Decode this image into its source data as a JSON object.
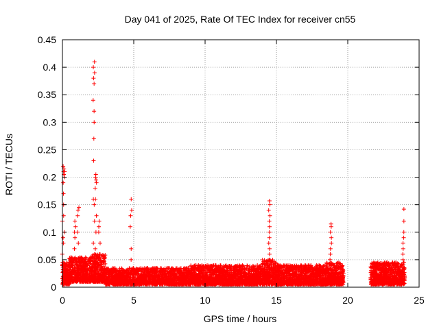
{
  "chart_data": {
    "type": "scatter",
    "title": "Day 041 of 2025, Rate Of TEC Index for receiver cn55",
    "xlabel": "GPS time / hours",
    "ylabel": "ROTI / TECUs",
    "xlim": [
      0,
      25
    ],
    "ylim": [
      0,
      0.45
    ],
    "xticks": [
      0,
      5,
      10,
      15,
      20,
      25
    ],
    "yticks": [
      0,
      0.05,
      0.1,
      0.15,
      0.2,
      0.25,
      0.3,
      0.35,
      0.4,
      0.45
    ],
    "grid": true,
    "marker": "+",
    "series_color": "#ff0000",
    "data_gap": [
      19.7,
      21.6
    ],
    "series": [
      {
        "name": "ROTI",
        "segments": [
          {
            "x": [
              0.0,
              0.5
            ],
            "ymin": 0.005,
            "ymax": 0.045,
            "density": 40
          },
          {
            "x": [
              0.5,
              2.0
            ],
            "ymin": 0.01,
            "ymax": 0.055,
            "density": 30
          },
          {
            "x": [
              2.0,
              3.0
            ],
            "ymin": 0.01,
            "ymax": 0.06,
            "density": 35
          },
          {
            "x": [
              3.0,
              6.5
            ],
            "ymin": 0.005,
            "ymax": 0.035,
            "density": 25
          },
          {
            "x": [
              6.5,
              9.0
            ],
            "ymin": 0.005,
            "ymax": 0.035,
            "density": 25
          },
          {
            "x": [
              9.0,
              12.0
            ],
            "ymin": 0.005,
            "ymax": 0.04,
            "density": 28
          },
          {
            "x": [
              12.0,
              14.0
            ],
            "ymin": 0.005,
            "ymax": 0.04,
            "density": 28
          },
          {
            "x": [
              14.0,
              15.0
            ],
            "ymin": 0.005,
            "ymax": 0.05,
            "density": 30
          },
          {
            "x": [
              15.0,
              18.5
            ],
            "ymin": 0.005,
            "ymax": 0.04,
            "density": 28
          },
          {
            "x": [
              18.5,
              19.7
            ],
            "ymin": 0.005,
            "ymax": 0.045,
            "density": 30
          },
          {
            "x": [
              21.6,
              24.0
            ],
            "ymin": 0.005,
            "ymax": 0.045,
            "density": 30
          }
        ],
        "spikes": [
          {
            "x": 0.1,
            "values": [
              0.1,
              0.13,
              0.15,
              0.17,
              0.19,
              0.205,
              0.21,
              0.215,
              0.22,
              0.21,
              0.2
            ]
          },
          {
            "x": 0.05,
            "values": [
              0.06,
              0.08,
              0.09,
              0.12
            ]
          },
          {
            "x": 0.9,
            "values": [
              0.07,
              0.09,
              0.1,
              0.11,
              0.12
            ]
          },
          {
            "x": 1.1,
            "values": [
              0.08,
              0.1,
              0.13,
              0.14,
              0.145
            ]
          },
          {
            "x": 2.2,
            "values": [
              0.06,
              0.08,
              0.12,
              0.15,
              0.16,
              0.23,
              0.27,
              0.3,
              0.32,
              0.34,
              0.37,
              0.38,
              0.39,
              0.4,
              0.41
            ]
          },
          {
            "x": 2.35,
            "values": [
              0.07,
              0.1,
              0.13,
              0.16,
              0.18,
              0.19,
              0.195,
              0.2,
              0.205
            ]
          },
          {
            "x": 2.6,
            "values": [
              0.06,
              0.08,
              0.1,
              0.11,
              0.12
            ]
          },
          {
            "x": 4.8,
            "values": [
              0.05,
              0.07,
              0.11,
              0.13,
              0.14,
              0.16
            ]
          },
          {
            "x": 14.5,
            "values": [
              0.05,
              0.06,
              0.07,
              0.08,
              0.09,
              0.1,
              0.11,
              0.12,
              0.13,
              0.14,
              0.15,
              0.157
            ]
          },
          {
            "x": 18.8,
            "values": [
              0.05,
              0.06,
              0.07,
              0.08,
              0.09,
              0.1,
              0.11,
              0.115
            ]
          },
          {
            "x": 23.9,
            "values": [
              0.05,
              0.06,
              0.07,
              0.08,
              0.09,
              0.1,
              0.12,
              0.142
            ]
          }
        ]
      }
    ]
  }
}
